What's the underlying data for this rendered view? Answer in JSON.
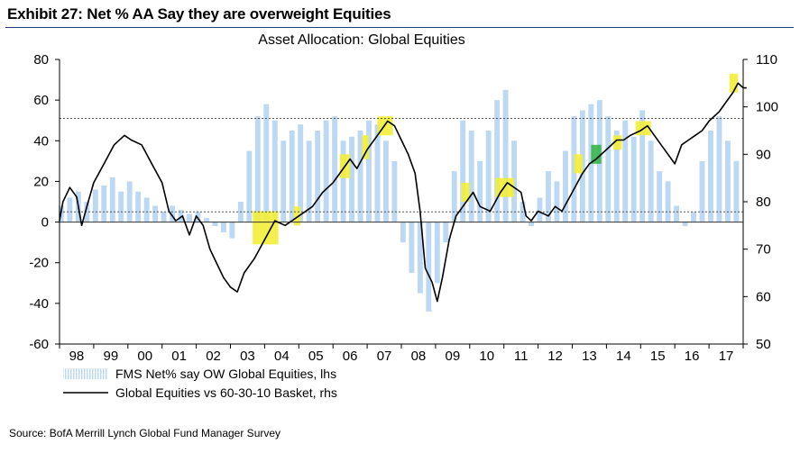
{
  "header": {
    "exhibit_title": "Exhibit 27: Net % AA Say they are overweight Equities"
  },
  "source": "Source:  BofA Merrill Lynch Global Fund Manager Survey",
  "chart_data": {
    "type": "bar+line",
    "title": "Asset Allocation: Global Equities",
    "x_tick_labels": [
      "98",
      "99",
      "00",
      "01",
      "02",
      "03",
      "04",
      "05",
      "06",
      "07",
      "08",
      "09",
      "10",
      "11",
      "12",
      "13",
      "14",
      "15",
      "16",
      "17"
    ],
    "x_range": [
      1998.0,
      2018.0
    ],
    "y_left": {
      "range": [
        -60,
        80
      ],
      "ticks": [
        -60,
        -40,
        -20,
        0,
        20,
        40,
        60,
        80
      ]
    },
    "y_right": {
      "range": [
        50,
        110
      ],
      "ticks": [
        50,
        60,
        70,
        80,
        90,
        100,
        110
      ]
    },
    "reference_lines_lhs": [
      {
        "value": 51,
        "style": "dashed"
      },
      {
        "value": 5,
        "style": "dashed"
      },
      {
        "value": 0,
        "style": "solid"
      }
    ],
    "colors": {
      "bars": "#bcd8f2",
      "line": "#000000",
      "highlight_yellow": "#f2ee3a",
      "highlight_green": "#39b54a",
      "reference": "#555555",
      "title_rule": "#1f3b73"
    },
    "legend": {
      "placement": "bottom-left",
      "entries": [
        "FMS Net% say OW Global Equities, lhs",
        "Global Equities vs 60-30-10 Basket, rhs"
      ]
    },
    "series": [
      {
        "name": "FMS Net% say OW Global Equities, lhs",
        "kind": "bar",
        "axis": "left",
        "points": [
          [
            1998.05,
            8
          ],
          [
            1998.3,
            12
          ],
          [
            1998.55,
            15
          ],
          [
            1998.8,
            10
          ],
          [
            1999.05,
            16
          ],
          [
            1999.3,
            18
          ],
          [
            1999.55,
            22
          ],
          [
            1999.8,
            15
          ],
          [
            2000.05,
            20
          ],
          [
            2000.3,
            15
          ],
          [
            2000.55,
            12
          ],
          [
            2000.8,
            8
          ],
          [
            2001.05,
            5
          ],
          [
            2001.3,
            8
          ],
          [
            2001.55,
            6
          ],
          [
            2001.8,
            4
          ],
          [
            2002.05,
            5
          ],
          [
            2002.3,
            2
          ],
          [
            2002.55,
            -2
          ],
          [
            2002.8,
            -5
          ],
          [
            2003.05,
            -8
          ],
          [
            2003.3,
            10
          ],
          [
            2003.55,
            35
          ],
          [
            2003.8,
            52
          ],
          [
            2004.05,
            58
          ],
          [
            2004.3,
            50
          ],
          [
            2004.55,
            40
          ],
          [
            2004.8,
            45
          ],
          [
            2005.05,
            48
          ],
          [
            2005.3,
            40
          ],
          [
            2005.55,
            45
          ],
          [
            2005.8,
            50
          ],
          [
            2006.05,
            52
          ],
          [
            2006.3,
            40
          ],
          [
            2006.55,
            42
          ],
          [
            2006.8,
            45
          ],
          [
            2007.05,
            50
          ],
          [
            2007.3,
            48
          ],
          [
            2007.55,
            40
          ],
          [
            2007.8,
            30
          ],
          [
            2008.05,
            -10
          ],
          [
            2008.3,
            -25
          ],
          [
            2008.55,
            -35
          ],
          [
            2008.8,
            -44
          ],
          [
            2009.05,
            -30
          ],
          [
            2009.3,
            -10
          ],
          [
            2009.55,
            25
          ],
          [
            2009.8,
            50
          ],
          [
            2010.05,
            45
          ],
          [
            2010.3,
            30
          ],
          [
            2010.55,
            45
          ],
          [
            2010.8,
            60
          ],
          [
            2011.05,
            65
          ],
          [
            2011.3,
            40
          ],
          [
            2011.55,
            10
          ],
          [
            2011.8,
            -2
          ],
          [
            2012.05,
            12
          ],
          [
            2012.3,
            25
          ],
          [
            2012.55,
            20
          ],
          [
            2012.8,
            35
          ],
          [
            2013.05,
            52
          ],
          [
            2013.3,
            55
          ],
          [
            2013.55,
            58
          ],
          [
            2013.8,
            60
          ],
          [
            2014.05,
            52
          ],
          [
            2014.3,
            45
          ],
          [
            2014.55,
            50
          ],
          [
            2014.8,
            42
          ],
          [
            2015.05,
            55
          ],
          [
            2015.3,
            40
          ],
          [
            2015.55,
            25
          ],
          [
            2015.8,
            20
          ],
          [
            2016.05,
            8
          ],
          [
            2016.3,
            -2
          ],
          [
            2016.55,
            5
          ],
          [
            2016.8,
            30
          ],
          [
            2017.05,
            45
          ],
          [
            2017.3,
            52
          ],
          [
            2017.55,
            40
          ],
          [
            2017.8,
            30
          ]
        ]
      },
      {
        "name": "Global Equities vs 60-30-10 Basket, rhs",
        "kind": "line",
        "axis": "right",
        "points": [
          [
            1998.0,
            76
          ],
          [
            1998.1,
            80
          ],
          [
            1998.3,
            83
          ],
          [
            1998.5,
            81
          ],
          [
            1998.65,
            75
          ],
          [
            1998.8,
            79
          ],
          [
            1999.0,
            84
          ],
          [
            1999.3,
            88
          ],
          [
            1999.6,
            92
          ],
          [
            1999.9,
            94
          ],
          [
            2000.1,
            93
          ],
          [
            2000.4,
            92
          ],
          [
            2000.7,
            88
          ],
          [
            2001.0,
            84
          ],
          [
            2001.2,
            78
          ],
          [
            2001.4,
            76
          ],
          [
            2001.6,
            77
          ],
          [
            2001.8,
            73
          ],
          [
            2002.0,
            77
          ],
          [
            2002.2,
            75
          ],
          [
            2002.4,
            70
          ],
          [
            2002.6,
            67
          ],
          [
            2002.8,
            64
          ],
          [
            2003.0,
            62
          ],
          [
            2003.2,
            61
          ],
          [
            2003.4,
            65
          ],
          [
            2003.7,
            68
          ],
          [
            2004.0,
            72
          ],
          [
            2004.3,
            76
          ],
          [
            2004.6,
            75
          ],
          [
            2004.8,
            76
          ],
          [
            2005.0,
            77
          ],
          [
            2005.4,
            79
          ],
          [
            2005.7,
            82
          ],
          [
            2006.0,
            84
          ],
          [
            2006.3,
            87
          ],
          [
            2006.5,
            89
          ],
          [
            2006.7,
            87
          ],
          [
            2007.0,
            91
          ],
          [
            2007.3,
            94
          ],
          [
            2007.6,
            97
          ],
          [
            2007.8,
            96
          ],
          [
            2008.0,
            93
          ],
          [
            2008.2,
            90
          ],
          [
            2008.4,
            86
          ],
          [
            2008.55,
            78
          ],
          [
            2008.7,
            66
          ],
          [
            2008.9,
            63
          ],
          [
            2009.05,
            59
          ],
          [
            2009.2,
            64
          ],
          [
            2009.4,
            72
          ],
          [
            2009.6,
            77
          ],
          [
            2009.9,
            80
          ],
          [
            2010.1,
            82
          ],
          [
            2010.3,
            79
          ],
          [
            2010.6,
            78
          ],
          [
            2010.9,
            82
          ],
          [
            2011.1,
            84
          ],
          [
            2011.3,
            83
          ],
          [
            2011.5,
            82
          ],
          [
            2011.65,
            77
          ],
          [
            2011.8,
            76
          ],
          [
            2012.0,
            78
          ],
          [
            2012.3,
            77
          ],
          [
            2012.5,
            79
          ],
          [
            2012.7,
            78
          ],
          [
            2013.0,
            82
          ],
          [
            2013.3,
            86
          ],
          [
            2013.5,
            88
          ],
          [
            2013.7,
            89
          ],
          [
            2014.0,
            91
          ],
          [
            2014.3,
            93
          ],
          [
            2014.5,
            93
          ],
          [
            2014.7,
            94
          ],
          [
            2015.0,
            95
          ],
          [
            2015.2,
            96
          ],
          [
            2015.4,
            94
          ],
          [
            2015.6,
            92
          ],
          [
            2015.8,
            90
          ],
          [
            2016.0,
            88
          ],
          [
            2016.2,
            92
          ],
          [
            2016.4,
            93
          ],
          [
            2016.6,
            94
          ],
          [
            2016.8,
            95
          ],
          [
            2017.0,
            97
          ],
          [
            2017.3,
            99
          ],
          [
            2017.5,
            101
          ],
          [
            2017.7,
            103
          ],
          [
            2017.85,
            105
          ],
          [
            2018.0,
            104
          ],
          [
            2018.1,
            104
          ]
        ]
      }
    ],
    "highlights": [
      {
        "x_range": [
          2003.65,
          2004.4
        ],
        "y_range": [
          71,
          78
        ],
        "color": "yellow"
      },
      {
        "x_range": [
          2004.85,
          2005.05
        ],
        "y_range": [
          75,
          79
        ],
        "color": "yellow"
      },
      {
        "x_range": [
          2006.2,
          2006.5
        ],
        "y_range": [
          85,
          90
        ],
        "color": "yellow"
      },
      {
        "x_range": [
          2006.85,
          2007.05
        ],
        "y_range": [
          89,
          94
        ],
        "color": "yellow"
      },
      {
        "x_range": [
          2007.3,
          2007.75
        ],
        "y_range": [
          94,
          98
        ],
        "color": "yellow"
      },
      {
        "x_range": [
          2009.75,
          2010.0
        ],
        "y_range": [
          80,
          84
        ],
        "color": "yellow"
      },
      {
        "x_range": [
          2010.75,
          2011.3
        ],
        "y_range": [
          81,
          85
        ],
        "color": "yellow"
      },
      {
        "x_range": [
          2013.05,
          2013.3
        ],
        "y_range": [
          86,
          90
        ],
        "color": "yellow"
      },
      {
        "x_range": [
          2013.55,
          2013.85
        ],
        "y_range": [
          88,
          92
        ],
        "color": "green"
      },
      {
        "x_range": [
          2014.2,
          2014.45
        ],
        "y_range": [
          91,
          94
        ],
        "color": "yellow"
      },
      {
        "x_range": [
          2014.85,
          2015.3
        ],
        "y_range": [
          94,
          97
        ],
        "color": "yellow"
      },
      {
        "x_range": [
          2017.6,
          2017.85
        ],
        "y_range": [
          103,
          107
        ],
        "color": "yellow"
      }
    ]
  }
}
